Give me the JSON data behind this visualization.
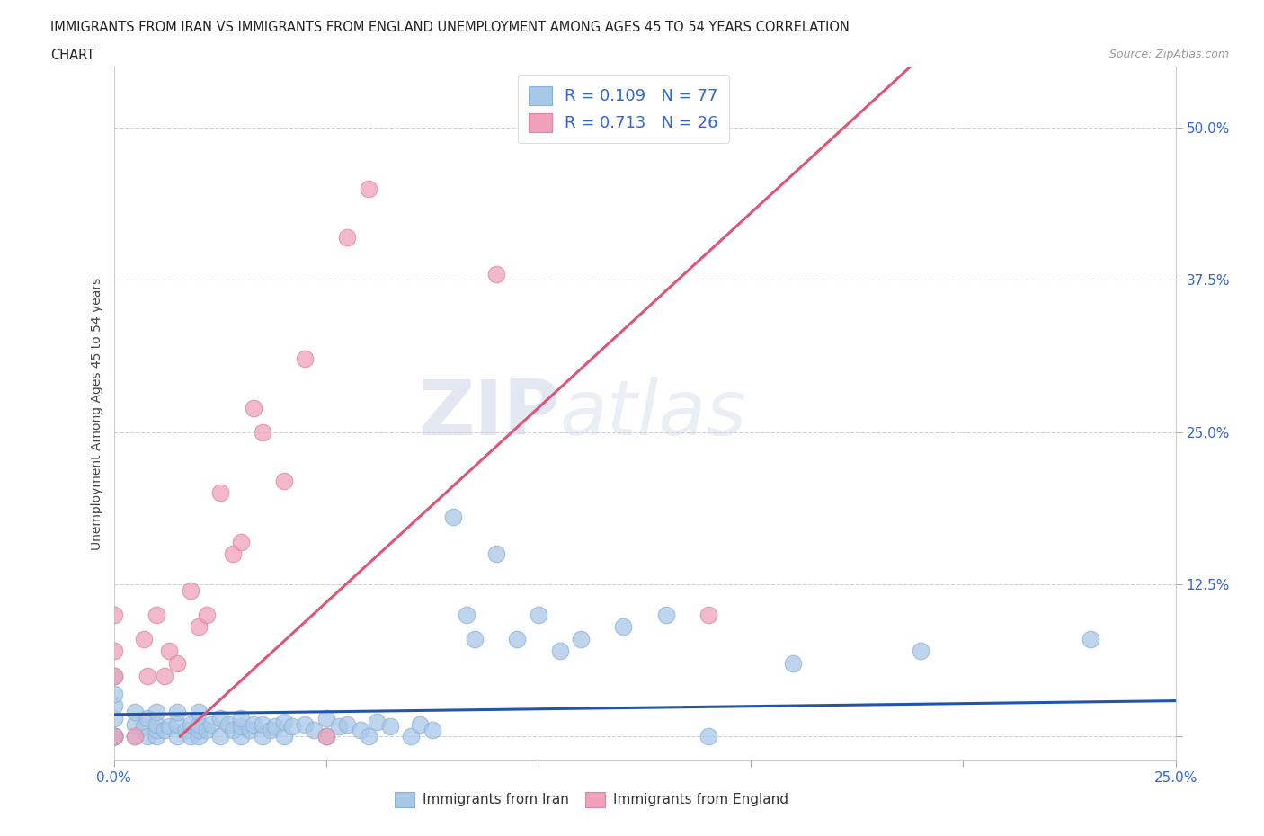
{
  "title_line1": "IMMIGRANTS FROM IRAN VS IMMIGRANTS FROM ENGLAND UNEMPLOYMENT AMONG AGES 45 TO 54 YEARS CORRELATION",
  "title_line2": "CHART",
  "source": "Source: ZipAtlas.com",
  "ylabel": "Unemployment Among Ages 45 to 54 years",
  "xlim": [
    0.0,
    0.25
  ],
  "ylim": [
    -0.02,
    0.55
  ],
  "xticks": [
    0.0,
    0.05,
    0.1,
    0.15,
    0.2,
    0.25
  ],
  "xtick_labels": [
    "0.0%",
    "",
    "",
    "",
    "",
    "25.0%"
  ],
  "yticks": [
    0.0,
    0.125,
    0.25,
    0.375,
    0.5
  ],
  "ytick_labels": [
    "",
    "12.5%",
    "25.0%",
    "37.5%",
    "50.0%"
  ],
  "iran_color": "#a8c8e8",
  "england_color": "#f0a0b8",
  "iran_line_color": "#2255aa",
  "england_line_color": "#dd5577",
  "iran_R": 0.109,
  "iran_N": 77,
  "england_R": 0.713,
  "england_N": 26,
  "background_color": "#ffffff",
  "iran_line_slope": 0.045,
  "iran_line_intercept": 0.018,
  "england_line_slope": 3.2,
  "england_line_intercept": -0.05,
  "iran_x": [
    0.0,
    0.0,
    0.0,
    0.0,
    0.0,
    0.0,
    0.0,
    0.0,
    0.0,
    0.0,
    0.005,
    0.005,
    0.005,
    0.007,
    0.008,
    0.008,
    0.01,
    0.01,
    0.01,
    0.01,
    0.012,
    0.013,
    0.015,
    0.015,
    0.015,
    0.017,
    0.018,
    0.018,
    0.02,
    0.02,
    0.02,
    0.02,
    0.022,
    0.023,
    0.025,
    0.025,
    0.027,
    0.028,
    0.03,
    0.03,
    0.03,
    0.032,
    0.033,
    0.035,
    0.035,
    0.037,
    0.038,
    0.04,
    0.04,
    0.042,
    0.045,
    0.047,
    0.05,
    0.05,
    0.053,
    0.055,
    0.058,
    0.06,
    0.062,
    0.065,
    0.07,
    0.072,
    0.075,
    0.08,
    0.083,
    0.085,
    0.09,
    0.095,
    0.1,
    0.105,
    0.11,
    0.12,
    0.13,
    0.14,
    0.16,
    0.19,
    0.23
  ],
  "iran_y": [
    0.0,
    0.0,
    0.0,
    0.0,
    0.0,
    0.0,
    0.015,
    0.025,
    0.035,
    0.05,
    0.0,
    0.01,
    0.02,
    0.008,
    0.0,
    0.015,
    0.0,
    0.005,
    0.01,
    0.02,
    0.005,
    0.008,
    0.0,
    0.01,
    0.02,
    0.005,
    0.0,
    0.01,
    0.0,
    0.005,
    0.01,
    0.02,
    0.005,
    0.01,
    0.0,
    0.015,
    0.01,
    0.005,
    0.0,
    0.008,
    0.015,
    0.005,
    0.01,
    0.0,
    0.01,
    0.005,
    0.008,
    0.0,
    0.012,
    0.008,
    0.01,
    0.005,
    0.0,
    0.015,
    0.008,
    0.01,
    0.005,
    0.0,
    0.012,
    0.008,
    0.0,
    0.01,
    0.005,
    0.18,
    0.1,
    0.08,
    0.15,
    0.08,
    0.1,
    0.07,
    0.08,
    0.09,
    0.1,
    0.0,
    0.06,
    0.07,
    0.08
  ],
  "england_x": [
    0.0,
    0.0,
    0.0,
    0.0,
    0.005,
    0.007,
    0.008,
    0.01,
    0.012,
    0.013,
    0.015,
    0.018,
    0.02,
    0.022,
    0.025,
    0.028,
    0.03,
    0.033,
    0.035,
    0.04,
    0.045,
    0.05,
    0.055,
    0.06,
    0.09,
    0.14
  ],
  "england_y": [
    0.0,
    0.05,
    0.07,
    0.1,
    0.0,
    0.08,
    0.05,
    0.1,
    0.05,
    0.07,
    0.06,
    0.12,
    0.09,
    0.1,
    0.2,
    0.15,
    0.16,
    0.27,
    0.25,
    0.21,
    0.31,
    0.0,
    0.41,
    0.45,
    0.38,
    0.1
  ]
}
